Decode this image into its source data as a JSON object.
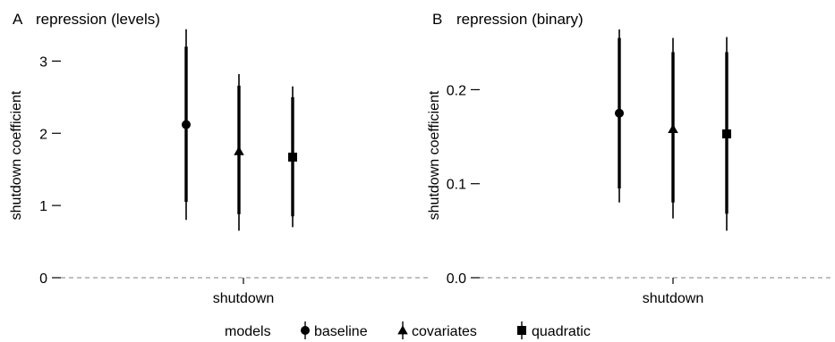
{
  "legend": {
    "title": "models",
    "items": [
      {
        "label": "baseline",
        "shape": "circle"
      },
      {
        "label": "covariates",
        "shape": "triangle"
      },
      {
        "label": "quadratic",
        "shape": "square"
      }
    ]
  },
  "colors": {
    "ink": "#000000",
    "zero_line": "#999999"
  },
  "chart_data": [
    {
      "type": "scatter",
      "panel": "A",
      "title": "repression (levels)",
      "xlabel": "shutdown",
      "ylabel": "shutdown coefficient",
      "ylim": [
        0,
        3.45
      ],
      "yticks": [
        {
          "value": 0,
          "label": "0"
        },
        {
          "value": 1,
          "label": "1"
        },
        {
          "value": 2,
          "label": "2"
        },
        {
          "value": 3,
          "label": "3"
        }
      ],
      "zero_line": true,
      "grid": false,
      "series": [
        {
          "name": "baseline",
          "shape": "circle",
          "estimate": 2.12,
          "ci90": [
            1.05,
            3.2
          ],
          "ci95": [
            0.8,
            3.44
          ]
        },
        {
          "name": "covariates",
          "shape": "triangle",
          "estimate": 1.75,
          "ci90": [
            0.88,
            2.66
          ],
          "ci95": [
            0.65,
            2.82
          ]
        },
        {
          "name": "quadratic",
          "shape": "square",
          "estimate": 1.67,
          "ci90": [
            0.85,
            2.5
          ],
          "ci95": [
            0.7,
            2.65
          ]
        }
      ]
    },
    {
      "type": "scatter",
      "panel": "B",
      "title": "repression (binary)",
      "xlabel": "shutdown",
      "ylabel": "shutdown coefficient",
      "ylim": [
        0,
        0.265
      ],
      "yticks": [
        {
          "value": 0.0,
          "label": "0.0"
        },
        {
          "value": 0.1,
          "label": "0.1"
        },
        {
          "value": 0.2,
          "label": "0.2"
        }
      ],
      "zero_line": true,
      "grid": false,
      "series": [
        {
          "name": "baseline",
          "shape": "circle",
          "estimate": 0.175,
          "ci90": [
            0.095,
            0.255
          ],
          "ci95": [
            0.08,
            0.264
          ]
        },
        {
          "name": "covariates",
          "shape": "triangle",
          "estimate": 0.158,
          "ci90": [
            0.08,
            0.24
          ],
          "ci95": [
            0.063,
            0.255
          ]
        },
        {
          "name": "quadratic",
          "shape": "square",
          "estimate": 0.153,
          "ci90": [
            0.068,
            0.24
          ],
          "ci95": [
            0.05,
            0.256
          ]
        }
      ]
    }
  ]
}
